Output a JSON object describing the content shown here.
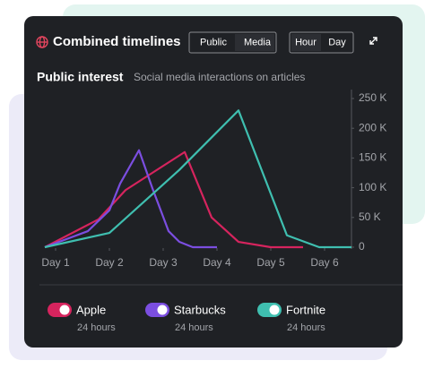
{
  "header": {
    "title": "Combined timelines",
    "source_tabs": [
      "Public",
      "Media"
    ],
    "range_tabs": [
      "Hour",
      "Day"
    ]
  },
  "chart_data": {
    "type": "line",
    "title": "Public interest",
    "subtitle": "Social media interactions on articles",
    "xlim": [
      0.8,
      6.5
    ],
    "xticks": [
      {
        "value": 1,
        "label": "Day 1"
      },
      {
        "value": 2,
        "label": "Day 2"
      },
      {
        "value": 3,
        "label": "Day 3"
      },
      {
        "value": 4,
        "label": "Day 4"
      },
      {
        "value": 5,
        "label": "Day 5"
      },
      {
        "value": 6,
        "label": "Day 6"
      }
    ],
    "ylim": [
      0,
      250000
    ],
    "yticks": [
      0,
      {
        "value": 50000,
        "label": "50 K"
      },
      {
        "value": 100000,
        "label": "100 K"
      },
      {
        "value": 150000,
        "label": "150 K"
      },
      {
        "value": 200000,
        "label": "200 K"
      },
      {
        "value": 250000,
        "label": "250 K"
      }
    ],
    "series": [
      {
        "name": "Apple",
        "period": "24 hours",
        "color": "#d6245e",
        "x": [
          0.8,
          1.8,
          2.3,
          3.4,
          3.9,
          4.4,
          5.0,
          5.6
        ],
        "values": [
          0,
          47000,
          96000,
          160000,
          50000,
          9000,
          0,
          0
        ]
      },
      {
        "name": "Starbucks",
        "period": "24 hours",
        "color": "#7b4ee0",
        "x": [
          0.8,
          1.6,
          2.0,
          2.2,
          2.55,
          2.8,
          3.1,
          3.3,
          3.55,
          4.0
        ],
        "values": [
          0,
          27000,
          62000,
          107000,
          163000,
          99000,
          27000,
          9000,
          0,
          0
        ]
      },
      {
        "name": "Fortnite",
        "period": "24 hours",
        "color": "#3fbfb0",
        "x": [
          0.8,
          2.0,
          3.3,
          4.4,
          5.3,
          5.9,
          6.5
        ],
        "values": [
          0,
          24000,
          130000,
          230000,
          20000,
          0,
          0
        ]
      }
    ]
  }
}
